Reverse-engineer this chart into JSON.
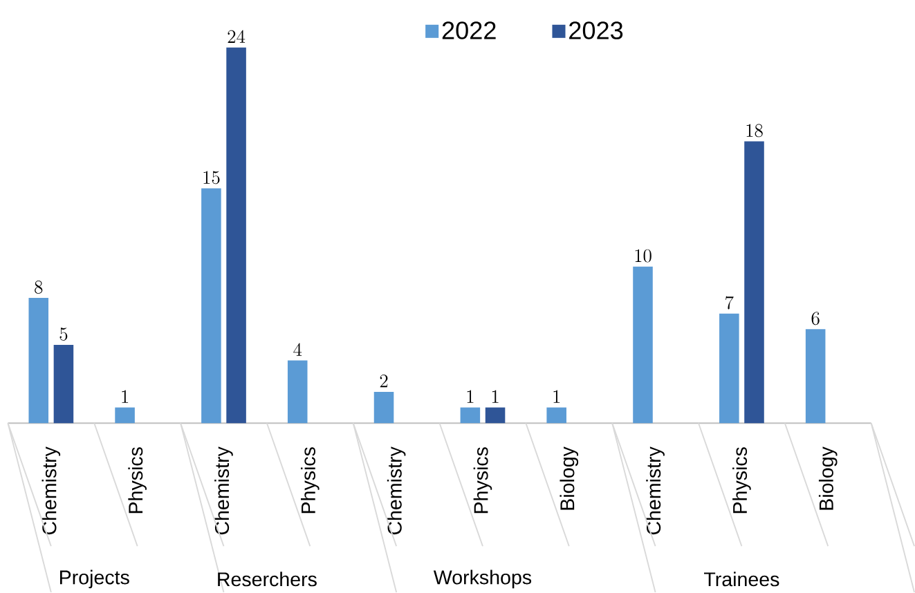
{
  "chart_data": {
    "type": "bar",
    "categories": [
      "Chemistry",
      "Physics",
      "Chemistry",
      "Physics",
      "Chemistry",
      "Physics",
      "Biology",
      "Chemistry",
      "Physics",
      "Biology"
    ],
    "series": [
      {
        "name": "2022",
        "color": "#5b9bd5",
        "values": [
          8,
          1,
          15,
          4,
          2,
          1,
          1,
          10,
          7,
          6
        ]
      },
      {
        "name": "2023",
        "color": "#2f5597",
        "values": [
          5,
          null,
          24,
          null,
          null,
          1,
          null,
          null,
          18,
          null
        ]
      }
    ],
    "annotations": [
      "Projects",
      "Reserchers",
      "Workshops",
      "Trainees"
    ],
    "data_labels": true,
    "legend": "top",
    "grid": false
  }
}
